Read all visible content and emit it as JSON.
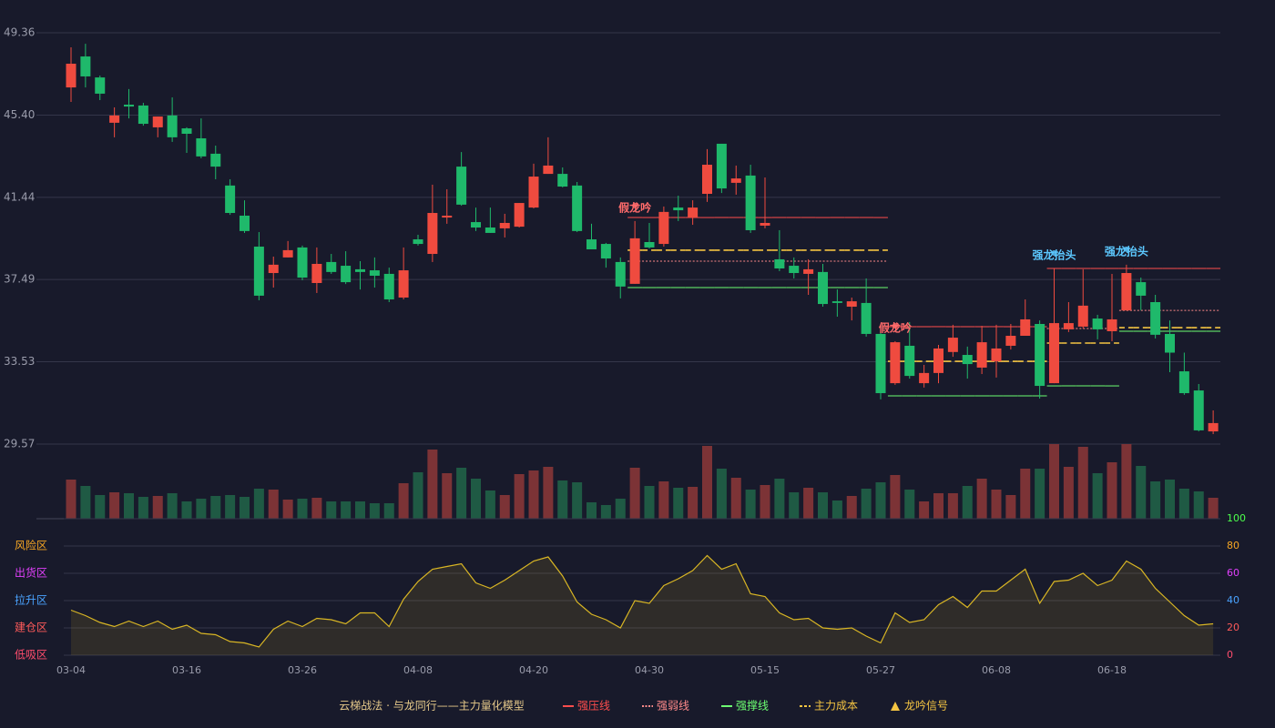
{
  "chart_data": {
    "type": "candlestick",
    "title": "云梯战法 · 与龙同行——主力量化模型",
    "categories": [
      "03-04",
      null,
      null,
      null,
      null,
      null,
      null,
      null,
      "03-16",
      null,
      null,
      null,
      null,
      null,
      null,
      null,
      "03-26",
      null,
      null,
      null,
      null,
      null,
      null,
      null,
      "04-08",
      null,
      null,
      null,
      null,
      null,
      null,
      null,
      "04-20",
      null,
      null,
      null,
      null,
      null,
      null,
      null,
      "04-30",
      null,
      null,
      null,
      null,
      null,
      null,
      null,
      "05-15",
      null,
      null,
      null,
      null,
      null,
      null,
      null,
      "05-27",
      null,
      null,
      null,
      null,
      null,
      null,
      null,
      "06-08",
      null,
      null,
      null,
      null,
      null,
      null,
      null,
      "06-18",
      null,
      null,
      null,
      null,
      null,
      null,
      null
    ],
    "open": [
      46.73,
      48.22,
      47.21,
      45.03,
      45.9,
      45.86,
      44.81,
      45.38,
      44.76,
      44.28,
      43.54,
      42.01,
      40.56,
      39.07,
      37.8,
      38.55,
      39.03,
      37.32,
      38.33,
      38.15,
      37.98,
      37.93,
      37.76,
      36.62,
      39.42,
      38.72,
      40.47,
      42.92,
      40.25,
      39.99,
      39.95,
      40.03,
      40.95,
      42.57,
      42.57,
      42.01,
      39.42,
      39.2,
      38.33,
      37.28,
      39.29,
      39.2,
      40.95,
      40.47,
      41.61,
      44.02,
      42.14,
      42.49,
      40.08,
      38.46,
      38.15,
      37.76,
      37.85,
      36.44,
      36.18,
      36.36,
      34.87,
      32.5,
      34.3,
      32.5,
      32.99,
      34.0,
      33.86,
      33.25,
      33.55,
      34.3,
      34.78,
      35.35,
      32.5,
      35.09,
      35.22,
      35.61,
      35.0,
      36.0,
      37.36,
      36.4,
      34.87,
      33.07,
      32.15,
      30.18
    ],
    "high": [
      48.66,
      48.83,
      47.3,
      45.77,
      46.65,
      45.99,
      45.33,
      46.25,
      44.81,
      45.24,
      43.93,
      42.31,
      41.3,
      39.77,
      38.59,
      39.34,
      39.12,
      39.03,
      38.72,
      38.85,
      38.37,
      38.55,
      38.06,
      39.03,
      39.64,
      42.05,
      41.83,
      43.62,
      40.95,
      40.95,
      40.65,
      41.17,
      43.06,
      44.33,
      42.88,
      42.18,
      40.17,
      39.25,
      38.55,
      40.3,
      40.21,
      41.0,
      41.52,
      41.3,
      43.76,
      44.02,
      42.97,
      43.01,
      42.4,
      39.86,
      38.55,
      38.46,
      38.24,
      37.01,
      36.62,
      37.54,
      35.0,
      34.52,
      35.44,
      33.38,
      34.34,
      35.31,
      34.26,
      35.26,
      35.31,
      35.35,
      36.53,
      35.52,
      38.02,
      36.4,
      37.98,
      35.79,
      37.76,
      38.2,
      37.58,
      36.75,
      35.52,
      33.97,
      32.46,
      31.19
    ],
    "low": [
      46.03,
      46.73,
      46.12,
      44.33,
      45.24,
      44.89,
      44.33,
      44.11,
      43.58,
      43.32,
      42.31,
      40.6,
      39.73,
      36.49,
      37.1,
      38.55,
      37.45,
      36.84,
      37.76,
      37.27,
      37.01,
      37.1,
      36.4,
      36.53,
      39.12,
      38.33,
      40.17,
      41.04,
      39.82,
      39.73,
      39.51,
      39.99,
      40.91,
      42.57,
      41.92,
      39.77,
      38.94,
      38.06,
      36.58,
      37.28,
      38.98,
      39.07,
      40.3,
      40.12,
      41.22,
      41.65,
      41.57,
      39.73,
      39.95,
      37.89,
      37.54,
      36.75,
      36.18,
      35.7,
      35.52,
      34.74,
      31.72,
      32.42,
      32.72,
      32.29,
      32.5,
      33.77,
      32.72,
      32.94,
      32.77,
      34.12,
      34.78,
      31.76,
      32.5,
      34.96,
      35.13,
      34.61,
      34.52,
      36.0,
      36.01,
      34.65,
      33.03,
      31.94,
      30.18,
      30.05
    ],
    "close": [
      47.87,
      47.26,
      46.43,
      45.38,
      45.81,
      44.98,
      45.33,
      44.33,
      44.5,
      43.41,
      42.92,
      40.69,
      39.82,
      36.71,
      38.2,
      38.9,
      37.58,
      38.24,
      37.85,
      37.36,
      37.85,
      37.67,
      36.53,
      37.93,
      39.2,
      40.69,
      40.56,
      41.09,
      39.99,
      39.73,
      40.21,
      41.17,
      42.44,
      42.97,
      41.96,
      39.82,
      38.94,
      38.5,
      37.15,
      39.47,
      39.03,
      40.74,
      40.82,
      40.95,
      43.01,
      41.87,
      42.35,
      39.86,
      40.21,
      38.02,
      37.8,
      37.98,
      36.31,
      36.36,
      36.44,
      34.87,
      32.02,
      34.47,
      32.85,
      32.99,
      34.17,
      34.69,
      33.42,
      34.47,
      34.17,
      34.78,
      35.57,
      32.37,
      35.39,
      35.39,
      36.23,
      35.09,
      35.57,
      37.8,
      36.71,
      34.83,
      33.97,
      32.02,
      30.23,
      30.58
    ],
    "volume": [
      43,
      36,
      26,
      29,
      28,
      24,
      25,
      28,
      19,
      22,
      25,
      26,
      24,
      33,
      32,
      21,
      22,
      23,
      19,
      19,
      19,
      17,
      17,
      39,
      51,
      76,
      50,
      56,
      44,
      31,
      26,
      49,
      53,
      57,
      42,
      40,
      18,
      15,
      22,
      56,
      36,
      41,
      34,
      35,
      80,
      55,
      45,
      32,
      37,
      44,
      29,
      34,
      29,
      20,
      25,
      33,
      40,
      48,
      32,
      19,
      28,
      28,
      36,
      44,
      32,
      26,
      55,
      55,
      82,
      57,
      79,
      50,
      62,
      82,
      58,
      41,
      43,
      33,
      30,
      23
    ],
    "up_color": "#ef4b3f",
    "down_color": "#1fb96b",
    "volume_up_color": "#7c3336",
    "volume_down_color": "#1f5a44",
    "ylim": [
      29.57,
      49.36
    ],
    "yticks": [
      29.57,
      33.53,
      37.49,
      {
        "value": 41.44,
        "label": "41.44"
      },
      {
        "value": 45.4,
        "label": "45.40"
      },
      49.36
    ],
    "grid": true,
    "levels": [
      {
        "name": "强压线",
        "color": "#ff4d4d",
        "style": "solid",
        "values": [
          null,
          null,
          null,
          null,
          null,
          null,
          null,
          null,
          null,
          null,
          null,
          null,
          null,
          null,
          null,
          null,
          null,
          null,
          null,
          null,
          null,
          null,
          null,
          null,
          null,
          null,
          null,
          null,
          null,
          null,
          null,
          null,
          null,
          null,
          null,
          null,
          null,
          null,
          null,
          40.47,
          40.47,
          40.47,
          40.47,
          40.47,
          40.47,
          40.47,
          40.47,
          40.47,
          40.47,
          40.47,
          40.47,
          40.47,
          40.47,
          40.47,
          40.47,
          40.47,
          40.47,
          35.22,
          35.22,
          35.22,
          35.22,
          35.22,
          35.22,
          35.22,
          35.22,
          35.22,
          35.22,
          35.22,
          38.02,
          38.02,
          38.02,
          38.02,
          38.02,
          38.02,
          38.02,
          38.02,
          38.02,
          38.02,
          38.02,
          38.02
        ]
      },
      {
        "name": "强弱线",
        "color": "#ff8a8a",
        "style": "dotted",
        "values": [
          null,
          null,
          null,
          null,
          null,
          null,
          null,
          null,
          null,
          null,
          null,
          null,
          null,
          null,
          null,
          null,
          null,
          null,
          null,
          null,
          null,
          null,
          null,
          null,
          null,
          null,
          null,
          null,
          null,
          null,
          null,
          null,
          null,
          null,
          null,
          null,
          null,
          null,
          null,
          38.37,
          38.37,
          38.37,
          38.37,
          38.37,
          38.37,
          38.37,
          38.37,
          38.37,
          38.37,
          38.37,
          38.37,
          38.37,
          38.37,
          38.37,
          38.37,
          38.37,
          38.37,
          null,
          null,
          null,
          null,
          null,
          null,
          null,
          null,
          null,
          null,
          null,
          35.13,
          35.13,
          35.13,
          35.13,
          35.13,
          36.0,
          36.0,
          36.0,
          36.0,
          36.0,
          36.0,
          36.0
        ]
      },
      {
        "name": "强撑线",
        "color": "#6dff72",
        "style": "solid",
        "values": [
          null,
          null,
          null,
          null,
          null,
          null,
          null,
          null,
          null,
          null,
          null,
          null,
          null,
          null,
          null,
          null,
          null,
          null,
          null,
          null,
          null,
          null,
          null,
          null,
          null,
          null,
          null,
          null,
          null,
          null,
          null,
          null,
          null,
          null,
          null,
          null,
          null,
          null,
          null,
          37.1,
          37.1,
          37.1,
          37.1,
          37.1,
          37.1,
          37.1,
          37.1,
          37.1,
          37.1,
          37.1,
          37.1,
          37.1,
          37.1,
          37.1,
          37.1,
          37.1,
          37.1,
          31.89,
          31.89,
          31.89,
          31.89,
          31.89,
          31.89,
          31.89,
          31.89,
          31.89,
          31.89,
          31.89,
          32.37,
          32.37,
          32.37,
          32.37,
          32.37,
          35.0,
          35.0,
          35.0,
          35.0,
          35.0,
          35.0,
          35.0
        ]
      },
      {
        "name": "主力成本",
        "color": "#f5c542",
        "style": "dashed",
        "values": [
          null,
          null,
          null,
          null,
          null,
          null,
          null,
          null,
          null,
          null,
          null,
          null,
          null,
          null,
          null,
          null,
          null,
          null,
          null,
          null,
          null,
          null,
          null,
          null,
          null,
          null,
          null,
          null,
          null,
          null,
          null,
          null,
          null,
          null,
          null,
          null,
          null,
          null,
          null,
          38.9,
          38.9,
          38.9,
          38.9,
          38.9,
          38.9,
          38.9,
          38.9,
          38.9,
          38.9,
          38.9,
          38.9,
          38.9,
          38.9,
          38.9,
          38.9,
          38.9,
          38.9,
          33.55,
          33.55,
          33.55,
          33.55,
          33.55,
          33.55,
          33.55,
          33.55,
          33.55,
          33.55,
          33.55,
          34.43,
          34.43,
          34.43,
          34.43,
          34.43,
          35.17,
          35.17,
          35.17,
          35.17,
          35.17,
          35.17,
          35.17
        ]
      }
    ],
    "signals": {
      "name": "龙吟信号",
      "color": "#f5c542",
      "label_colors": {
        "假龙吟": "#ff6b6b",
        "强龙抬头": "#5cc8ff"
      },
      "labels": [
        null,
        null,
        null,
        null,
        null,
        null,
        null,
        null,
        null,
        null,
        null,
        null,
        null,
        null,
        null,
        null,
        null,
        null,
        null,
        null,
        null,
        null,
        null,
        null,
        null,
        null,
        null,
        null,
        null,
        null,
        null,
        null,
        null,
        null,
        null,
        null,
        null,
        null,
        null,
        "假龙吟",
        null,
        null,
        null,
        null,
        null,
        null,
        null,
        null,
        null,
        null,
        null,
        null,
        null,
        null,
        null,
        null,
        null,
        "假龙吟",
        null,
        null,
        null,
        null,
        null,
        null,
        null,
        null,
        null,
        null,
        "强龙抬头",
        null,
        null,
        null,
        null,
        "强龙抬头",
        null,
        null,
        null,
        null,
        null,
        null
      ]
    },
    "indicator": {
      "color": "#d9b624",
      "ylim": [
        0,
        100
      ],
      "yticks": [
        0,
        20,
        40,
        60,
        80,
        100
      ],
      "tick_colors": [
        "#ff4d6d",
        "#ff5a5a",
        "#4aa3ff",
        "#e040fb",
        "#f5a623",
        "#4cff4c"
      ],
      "zones": [
        "低吸区",
        "建仓区",
        "拉升区",
        "出货区",
        "风险区"
      ],
      "zone_colors": [
        "#ff4d6d",
        "#ff5a5a",
        "#4aa3ff",
        "#e040fb",
        "#f5a623"
      ],
      "values": [
        33,
        29,
        24,
        21,
        25,
        21,
        25,
        19,
        22,
        16,
        15,
        10,
        9,
        6,
        19,
        25,
        21,
        27,
        26,
        23,
        31,
        31,
        21,
        41,
        54,
        63,
        65,
        67,
        53,
        49,
        55,
        62,
        69,
        72,
        58,
        39,
        30,
        26,
        20,
        40,
        38,
        51,
        56,
        62,
        73,
        63,
        67,
        45,
        43,
        31,
        26,
        27,
        20,
        19,
        20,
        14,
        9,
        31,
        24,
        26,
        37,
        43,
        35,
        47,
        47,
        55,
        63,
        38,
        54,
        55,
        60,
        51,
        55,
        69,
        63,
        49,
        39,
        29,
        22,
        23
      ]
    },
    "legend": "bottom"
  }
}
